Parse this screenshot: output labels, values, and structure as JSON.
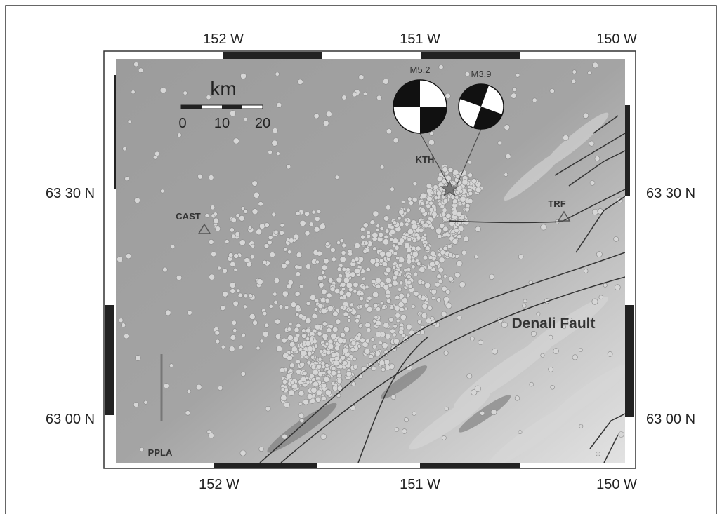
{
  "axes": {
    "top": [
      "152 W",
      "151 W",
      "150 W"
    ],
    "bottom": [
      "152 W",
      "151 W",
      "150 W"
    ],
    "left": [
      "63 30 N",
      "63 00 N"
    ],
    "right": [
      "63 30 N",
      "63 00 N"
    ]
  },
  "scale_bar": {
    "unit": "km",
    "labels": [
      "0",
      "10",
      "20"
    ]
  },
  "mechanisms": [
    "M5.2",
    "M3.9"
  ],
  "stations": [
    "KTH",
    "CAST",
    "TRF",
    "PPLA"
  ],
  "fault_label": "Denali Fault"
}
